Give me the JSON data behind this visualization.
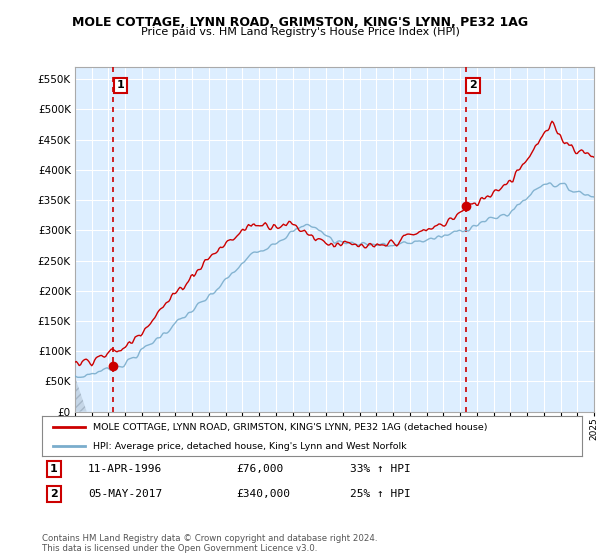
{
  "title": "MOLE COTTAGE, LYNN ROAD, GRIMSTON, KING'S LYNN, PE32 1AG",
  "subtitle": "Price paid vs. HM Land Registry's House Price Index (HPI)",
  "legend_line1": "MOLE COTTAGE, LYNN ROAD, GRIMSTON, KING'S LYNN, PE32 1AG (detached house)",
  "legend_line2": "HPI: Average price, detached house, King's Lynn and West Norfolk",
  "annotation1_label": "1",
  "annotation1_date": "11-APR-1996",
  "annotation1_price": "£76,000",
  "annotation1_hpi": "33% ↑ HPI",
  "annotation2_label": "2",
  "annotation2_date": "05-MAY-2017",
  "annotation2_price": "£340,000",
  "annotation2_hpi": "25% ↑ HPI",
  "footnote": "Contains HM Land Registry data © Crown copyright and database right 2024.\nThis data is licensed under the Open Government Licence v3.0.",
  "red_color": "#cc0000",
  "blue_color": "#7aadcc",
  "bg_color": "#ddeeff",
  "hatch_color": "#bbccdd",
  "ylim": [
    0,
    570000
  ],
  "yticks": [
    0,
    50000,
    100000,
    150000,
    200000,
    250000,
    300000,
    350000,
    400000,
    450000,
    500000,
    550000
  ],
  "x_start_year": 1994,
  "x_end_year": 2025,
  "purchase1_year": 1996.28,
  "purchase1_value": 76000,
  "purchase2_year": 2017.34,
  "purchase2_value": 340000
}
